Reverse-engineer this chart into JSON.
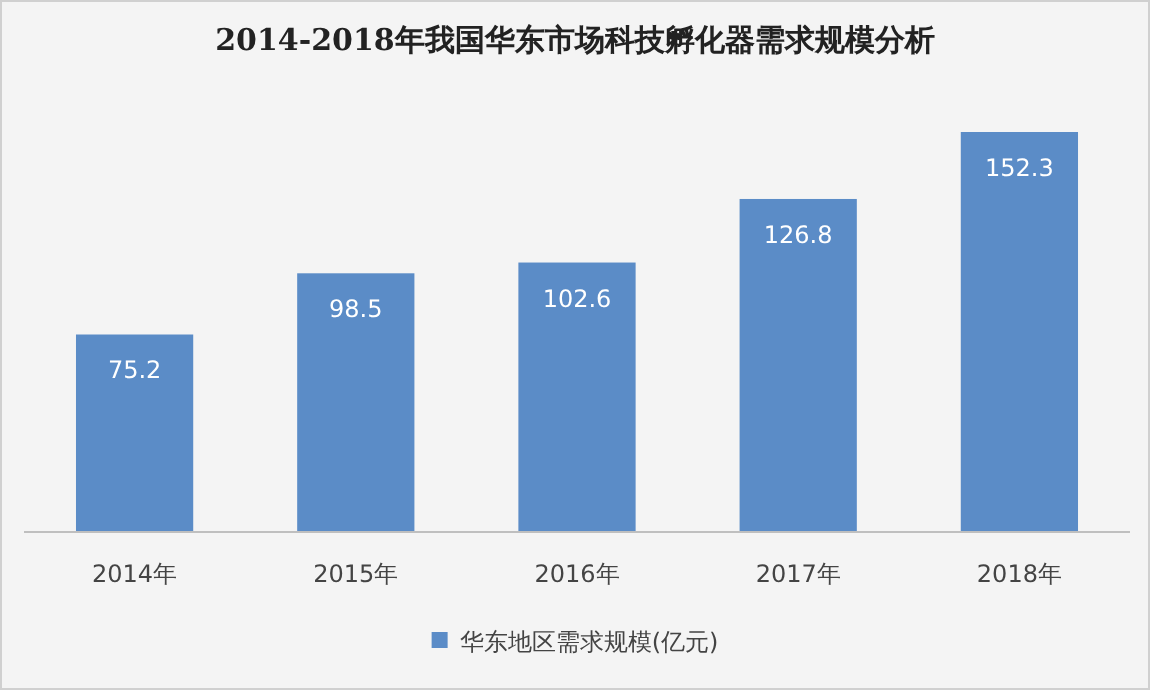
{
  "chart_data": {
    "type": "bar",
    "title": "2014-2018年我国华东市场科技孵化器需求规模分析",
    "categories": [
      "2014年",
      "2015年",
      "2016年",
      "2017年",
      "2018年"
    ],
    "series": [
      {
        "name": "华东地区需求规模(亿元)",
        "color": "#5b8cc7",
        "values": [
          75.2,
          98.5,
          102.6,
          126.8,
          152.3
        ]
      }
    ],
    "data_labels": true,
    "legend": "bottom"
  }
}
